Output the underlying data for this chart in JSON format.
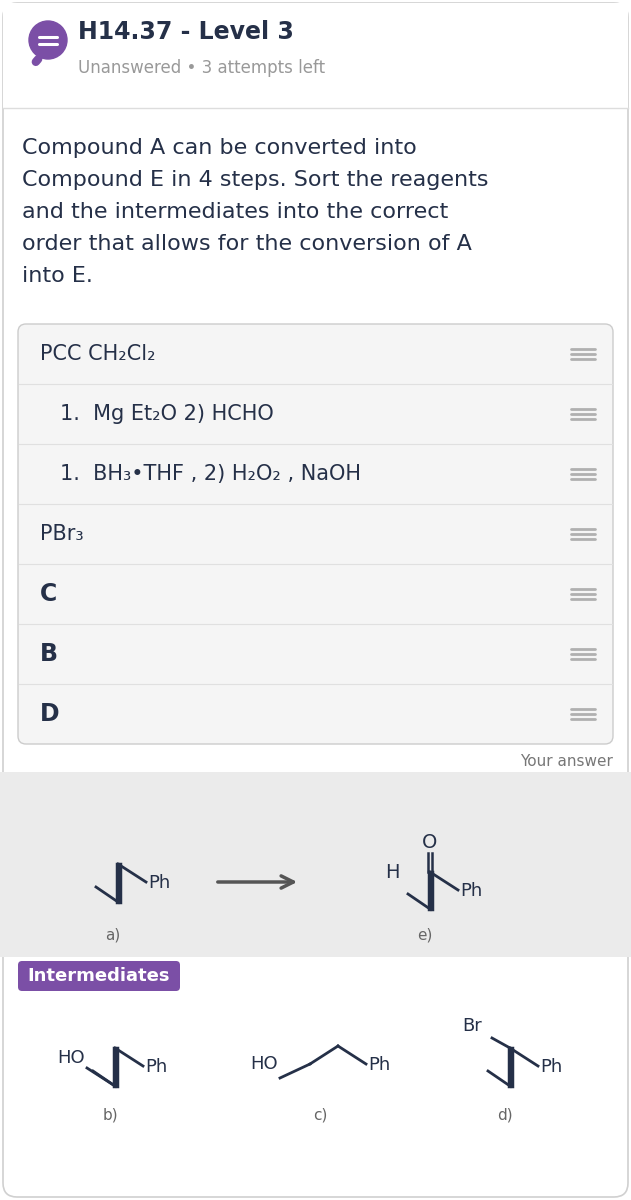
{
  "title": "H14.37 - Level 3",
  "subtitle": "Unanswered • 3 attempts left",
  "question_lines": [
    "Compound A can be converted into",
    "Compound E in 4 steps. Sort the reagents",
    "and the intermediates into the correct",
    "order that allows for the conversion of A",
    "into E."
  ],
  "items": [
    "PCC CH₂Cl₂",
    "1.  Mg Et₂O 2) HCHO",
    "1.  BH₃•THF , 2) H₂O₂ , NaOH",
    "PBr₃",
    "C",
    "B",
    "D"
  ],
  "item_indent": [
    0,
    1,
    1,
    0,
    0,
    0,
    0
  ],
  "your_answer_label": "Your answer",
  "intermediates_label": "Intermediates",
  "compound_labels": [
    "a)",
    "e)",
    "b)",
    "c)",
    "d)"
  ],
  "bg_color": "#ffffff",
  "header_bg": "#f7f7f7",
  "text_color": "#253048",
  "subtitle_color": "#999999",
  "item_bg": "#f5f5f5",
  "item_divider": "#e0e0e0",
  "item_border": "#cccccc",
  "intermediates_bg": "#7b4fa6",
  "intermediates_text": "#ffffff",
  "icon_color": "#7b4fa6",
  "answer_bg": "#ebebeb",
  "drag_color": "#b0b0b0",
  "mol_color": "#253048",
  "header_line_color": "#dddddd",
  "outer_border": "#d0d0d0"
}
